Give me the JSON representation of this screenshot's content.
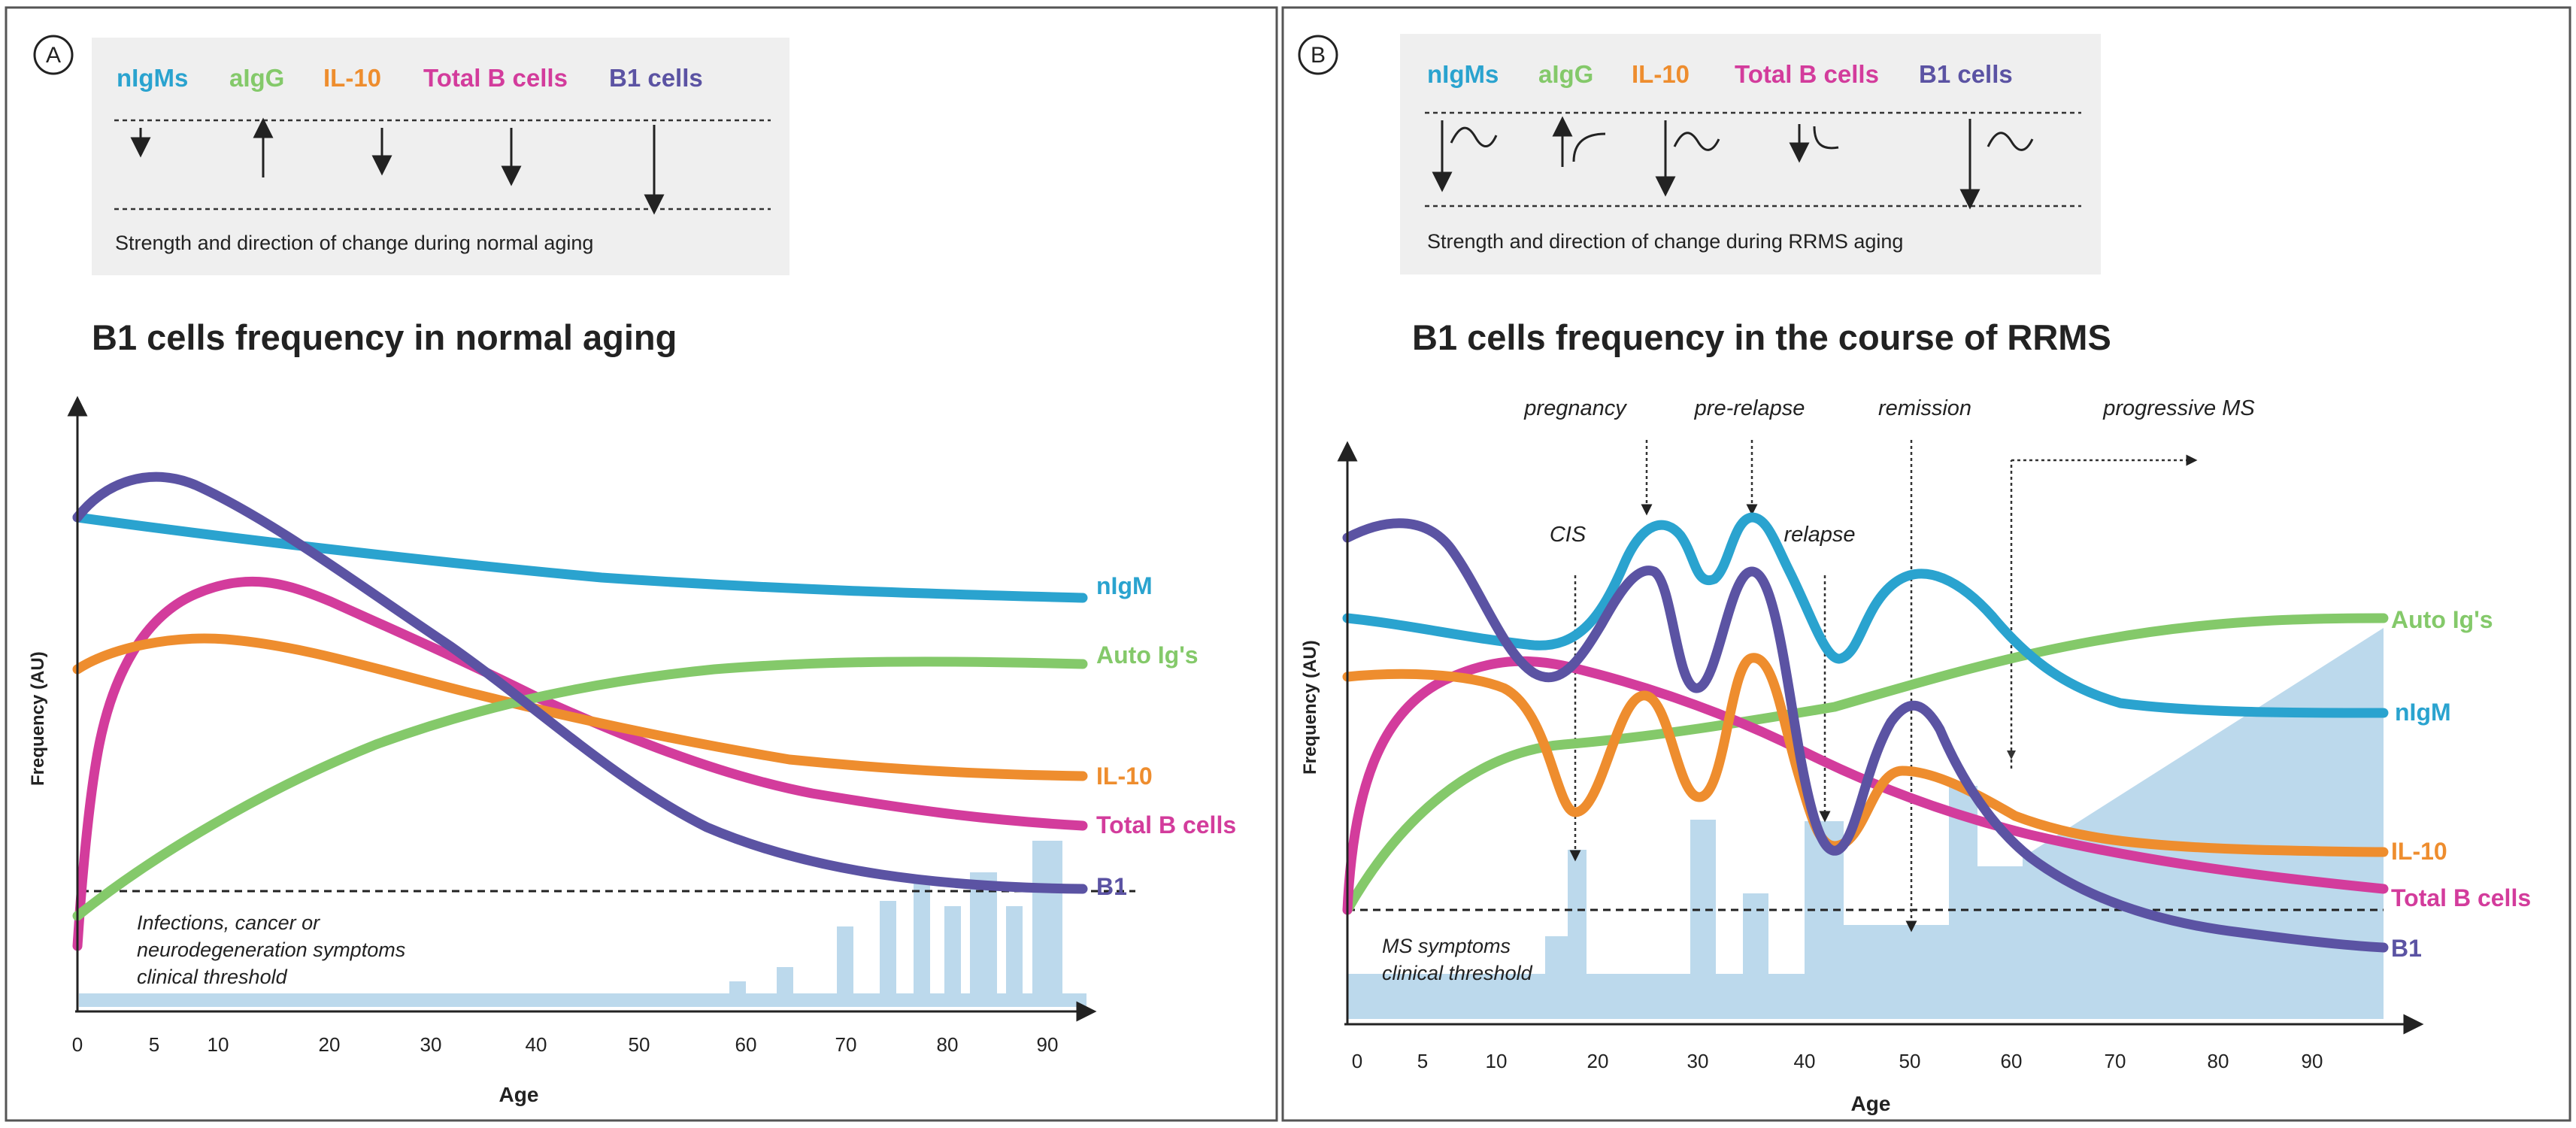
{
  "colors": {
    "nigm": "#2aa3cf",
    "aigg": "#84c96a",
    "il10": "#ee8d2e",
    "totalb": "#d33c9c",
    "b1": "#5b53a3",
    "bars": "#bcd9ec",
    "legend_bg": "#efefef",
    "axis": "#222222"
  },
  "panel_a": {
    "badge": "A",
    "legend_items": [
      "nIgMs",
      "aIgG",
      "IL-10",
      "Total B cells",
      "B1 cells"
    ],
    "legend_caption": "Strength and direction of change during normal aging",
    "title": "B1 cells frequency in normal aging",
    "ylabel": "Frequency  (AU)",
    "xlabel": "Age",
    "xticks": [
      "0",
      "5",
      "10",
      "20",
      "30",
      "40",
      "50",
      "60",
      "70",
      "80",
      "90"
    ],
    "series_labels": [
      "nIgM",
      "Auto Ig's",
      "IL-10",
      "Total B cells",
      "B1"
    ],
    "threshold_lines": [
      "Infections, cancer or",
      "neurodegeneration symptoms",
      "clinical threshold"
    ]
  },
  "panel_b": {
    "badge": "B",
    "legend_items": [
      "nIgMs",
      "aIgG",
      "IL-10",
      "Total B cells",
      "B1 cells"
    ],
    "legend_caption": "Strength and direction of change during RRMS aging",
    "title": "B1 cells frequency in the course of RRMS",
    "ylabel": "Frequency  (AU)",
    "xlabel": "Age",
    "xticks": [
      "0",
      "5",
      "10",
      "20",
      "30",
      "40",
      "50",
      "60",
      "70",
      "80",
      "90"
    ],
    "series_labels": [
      "Auto Ig's",
      "nIgM",
      "IL-10",
      "Total B cells",
      "B1"
    ],
    "events": [
      "pregnancy",
      "pre-relapse",
      "remission",
      "progressive MS",
      "CIS",
      "relapse"
    ],
    "threshold_lines": [
      "MS symptoms",
      "clinical threshold"
    ]
  },
  "chart_data": [
    {
      "type": "line",
      "title": "B1 cells frequency in normal aging",
      "xlabel": "Age",
      "ylabel": "Frequency  (AU)",
      "x_ticks": [
        0,
        5,
        10,
        20,
        30,
        40,
        50,
        60,
        70,
        80,
        90
      ],
      "series": [
        {
          "name": "nIgM",
          "x": [
            0,
            20,
            40,
            60,
            80,
            92
          ],
          "values": [
            9.6,
            8.9,
            8.3,
            7.8,
            7.4,
            7.4
          ]
        },
        {
          "name": "Auto Ig's",
          "x": [
            0,
            10,
            20,
            30,
            40,
            50,
            60,
            70,
            80,
            92
          ],
          "values": [
            1.6,
            2.9,
            4.0,
            4.9,
            5.7,
            6.3,
            6.6,
            6.8,
            6.9,
            6.8
          ]
        },
        {
          "name": "IL-10",
          "x": [
            0,
            8,
            20,
            30,
            40,
            50,
            60,
            70,
            80,
            92
          ],
          "values": [
            6.8,
            7.3,
            7.1,
            6.5,
            5.9,
            5.2,
            4.7,
            4.4,
            4.3,
            4.2
          ]
        },
        {
          "name": "Total B cells",
          "x": [
            0,
            5,
            12,
            20,
            30,
            40,
            50,
            60,
            70,
            80,
            92
          ],
          "values": [
            1.2,
            6.5,
            8.5,
            8.2,
            6.9,
            5.6,
            4.7,
            4.0,
            3.6,
            3.4,
            3.2
          ]
        },
        {
          "name": "B1",
          "x": [
            0,
            5,
            15,
            25,
            35,
            45,
            55,
            65,
            75,
            85,
            92
          ],
          "values": [
            9.6,
            10.5,
            9.6,
            7.9,
            6.4,
            4.9,
            3.9,
            3.2,
            2.6,
            2.2,
            2.0
          ]
        }
      ],
      "bars": {
        "name": "symptom frequency",
        "x": [
          0,
          57,
          59,
          63,
          69,
          72,
          75,
          77,
          79,
          82,
          85,
          88
        ],
        "values": [
          0.3,
          0.3,
          0.6,
          0.9,
          1.8,
          2.3,
          2.7,
          2.3,
          2.8,
          2.3,
          2.3,
          3.2
        ]
      },
      "threshold": {
        "label": "Infections, cancer or neurodegeneration symptoms clinical threshold",
        "value": 2.1
      }
    },
    {
      "type": "line",
      "title": "B1 cells frequency in the course of RRMS",
      "xlabel": "Age",
      "ylabel": "Frequency  (AU)",
      "x_ticks": [
        0,
        5,
        10,
        20,
        30,
        40,
        50,
        60,
        70,
        80,
        90
      ],
      "series": [
        {
          "name": "nIgM",
          "x": [
            0,
            10,
            18,
            25,
            29,
            34,
            41,
            50,
            60,
            70,
            80,
            97
          ],
          "values": [
            7.2,
            6.9,
            7.0,
            9.2,
            8.5,
            9.2,
            6.8,
            8.3,
            6.8,
            5.8,
            5.6,
            5.6
          ]
        },
        {
          "name": "Auto Ig's",
          "x": [
            0,
            15,
            30,
            45,
            60,
            75,
            97
          ],
          "values": [
            0.8,
            3.8,
            5.4,
            6.4,
            7.0,
            7.2,
            7.1
          ]
        },
        {
          "name": "IL-10",
          "x": [
            0,
            10,
            18,
            24,
            29,
            35,
            42,
            50,
            60,
            75,
            97
          ],
          "values": [
            6.1,
            5.9,
            2.2,
            5.9,
            3.0,
            6.6,
            1.7,
            4.2,
            3.0,
            2.2,
            1.8
          ]
        },
        {
          "name": "Total B cells",
          "x": [
            0,
            5,
            15,
            25,
            35,
            45,
            55,
            65,
            80,
            97
          ],
          "values": [
            0.9,
            5.0,
            6.3,
            5.8,
            5.0,
            4.0,
            3.1,
            2.4,
            1.8,
            1.2
          ]
        },
        {
          "name": "B1",
          "x": [
            0,
            5,
            15,
            23,
            29,
            34,
            42,
            50,
            56,
            70,
            85,
            97
          ],
          "values": [
            9.0,
            8.6,
            6.0,
            8.2,
            5.8,
            8.7,
            2.0,
            5.7,
            2.4,
            1.2,
            0.4,
            0.0
          ]
        }
      ],
      "bars": {
        "name": "symptom frequency",
        "x": [
          0,
          17,
          19,
          30,
          32,
          36,
          40,
          44,
          50,
          55,
          60,
          70,
          80,
          90,
          97
        ],
        "values": [
          0.8,
          1.0,
          2.5,
          2.7,
          0.8,
          1.4,
          2.6,
          1.2,
          1.2,
          3.3,
          2.8,
          4.0,
          5.5,
          6.8,
          7.4
        ]
      },
      "threshold": {
        "label": "MS symptoms clinical threshold",
        "value": 1.0
      },
      "events": [
        {
          "label": "CIS",
          "x": 18
        },
        {
          "label": "pregnancy",
          "x": 25
        },
        {
          "label": "pre-relapse",
          "x": 35
        },
        {
          "label": "relapse",
          "x": 43
        },
        {
          "label": "remission",
          "x": 50
        },
        {
          "label": "progressive MS",
          "x": 60
        }
      ]
    }
  ]
}
